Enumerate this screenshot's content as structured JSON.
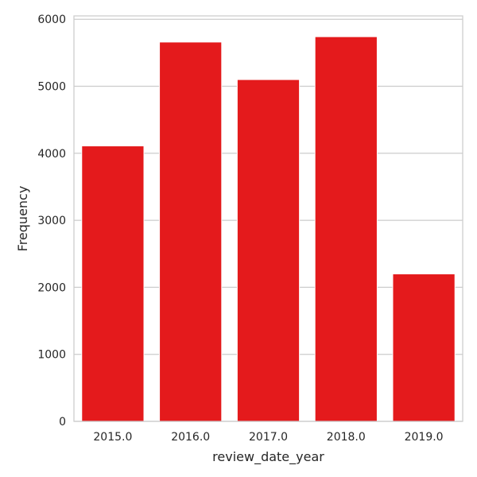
{
  "chart_data": {
    "type": "bar",
    "categories": [
      "2015.0",
      "2016.0",
      "2017.0",
      "2018.0",
      "2019.0"
    ],
    "values": [
      4110,
      5660,
      5100,
      5740,
      2200
    ],
    "xlabel": "review_date_year",
    "ylabel": "Frequency",
    "ylim": [
      0,
      6050
    ],
    "yticks": [
      0,
      1000,
      2000,
      3000,
      4000,
      5000,
      6000
    ],
    "grid": true,
    "bar_color": "#e41a1c",
    "grid_color": "#cccccc",
    "spine_color": "#cccccc"
  }
}
